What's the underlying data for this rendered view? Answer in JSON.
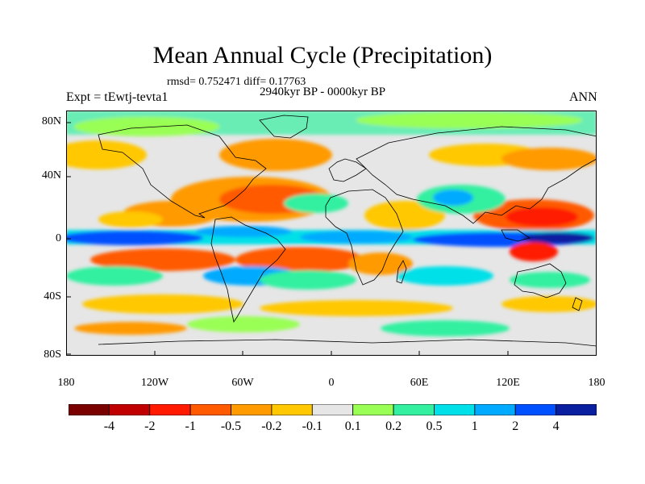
{
  "title": "Mean Annual Cycle (Precipitation)",
  "stats": "rmsd= 0.752471 diff= 0.17763",
  "period": "2940kyr BP - 0000kyr BP",
  "experiment": "Expt = tEwtj-tevta1",
  "season": "ANN",
  "lat_labels": [
    "80N",
    "40N",
    "0",
    "40S",
    "80S"
  ],
  "lon_labels": [
    "180",
    "120W",
    "60W",
    "0",
    "60E",
    "120E",
    "180"
  ],
  "colorbar": {
    "colors": [
      "#7a0000",
      "#c00000",
      "#ff1a00",
      "#ff5a00",
      "#ff9a00",
      "#ffc800",
      "#e6e6e6",
      "#99ff55",
      "#33f0a0",
      "#00e0e8",
      "#00aaff",
      "#0050ff",
      "#0a1fa0"
    ],
    "labels": [
      "-4",
      "-2",
      "-1",
      "-0.5",
      "-0.2",
      "-0.1",
      "0.1",
      "0.2",
      "0.5",
      "1",
      "2",
      "4"
    ]
  }
}
